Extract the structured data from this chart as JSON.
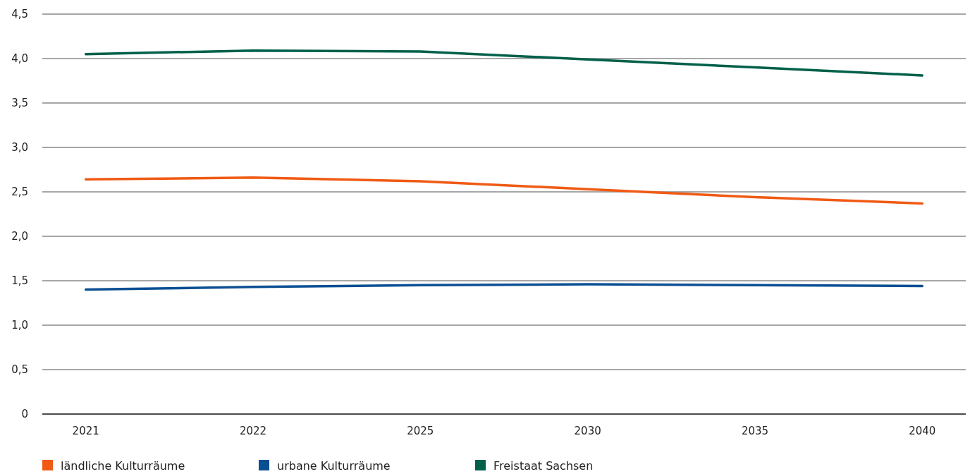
{
  "chart_data": {
    "type": "line",
    "categories": [
      "2021",
      "2022",
      "2025",
      "2030",
      "2035",
      "2040"
    ],
    "series": [
      {
        "name": "ländliche Kulturräume",
        "color": "#f05a14",
        "values": [
          2.64,
          2.66,
          2.62,
          2.53,
          2.44,
          2.37
        ]
      },
      {
        "name": "urbane Kulturräume",
        "color": "#0b4f93",
        "values": [
          1.4,
          1.43,
          1.45,
          1.46,
          1.45,
          1.44
        ]
      },
      {
        "name": "Freistaat Sachsen",
        "color": "#00604a",
        "values": [
          4.05,
          4.09,
          4.08,
          3.99,
          3.9,
          3.81
        ]
      }
    ],
    "ylim": [
      0,
      4.5
    ],
    "yticks": [
      0,
      {
        "value": 0.5,
        "label": "0,5"
      },
      {
        "value": 1,
        "label": "1,0"
      },
      {
        "value": 1.5,
        "label": "1,5"
      },
      {
        "value": 2,
        "label": "2,0"
      },
      {
        "value": 2.5,
        "label": "2,5"
      },
      {
        "value": 3,
        "label": "3,0"
      },
      {
        "value": 3.5,
        "label": "3,5"
      },
      {
        "value": 4,
        "label": "4,0"
      },
      {
        "value": 4.5,
        "label": "4,5"
      }
    ],
    "grid": "y",
    "legend": "bottom",
    "marker": "none",
    "line_style": "solid"
  }
}
